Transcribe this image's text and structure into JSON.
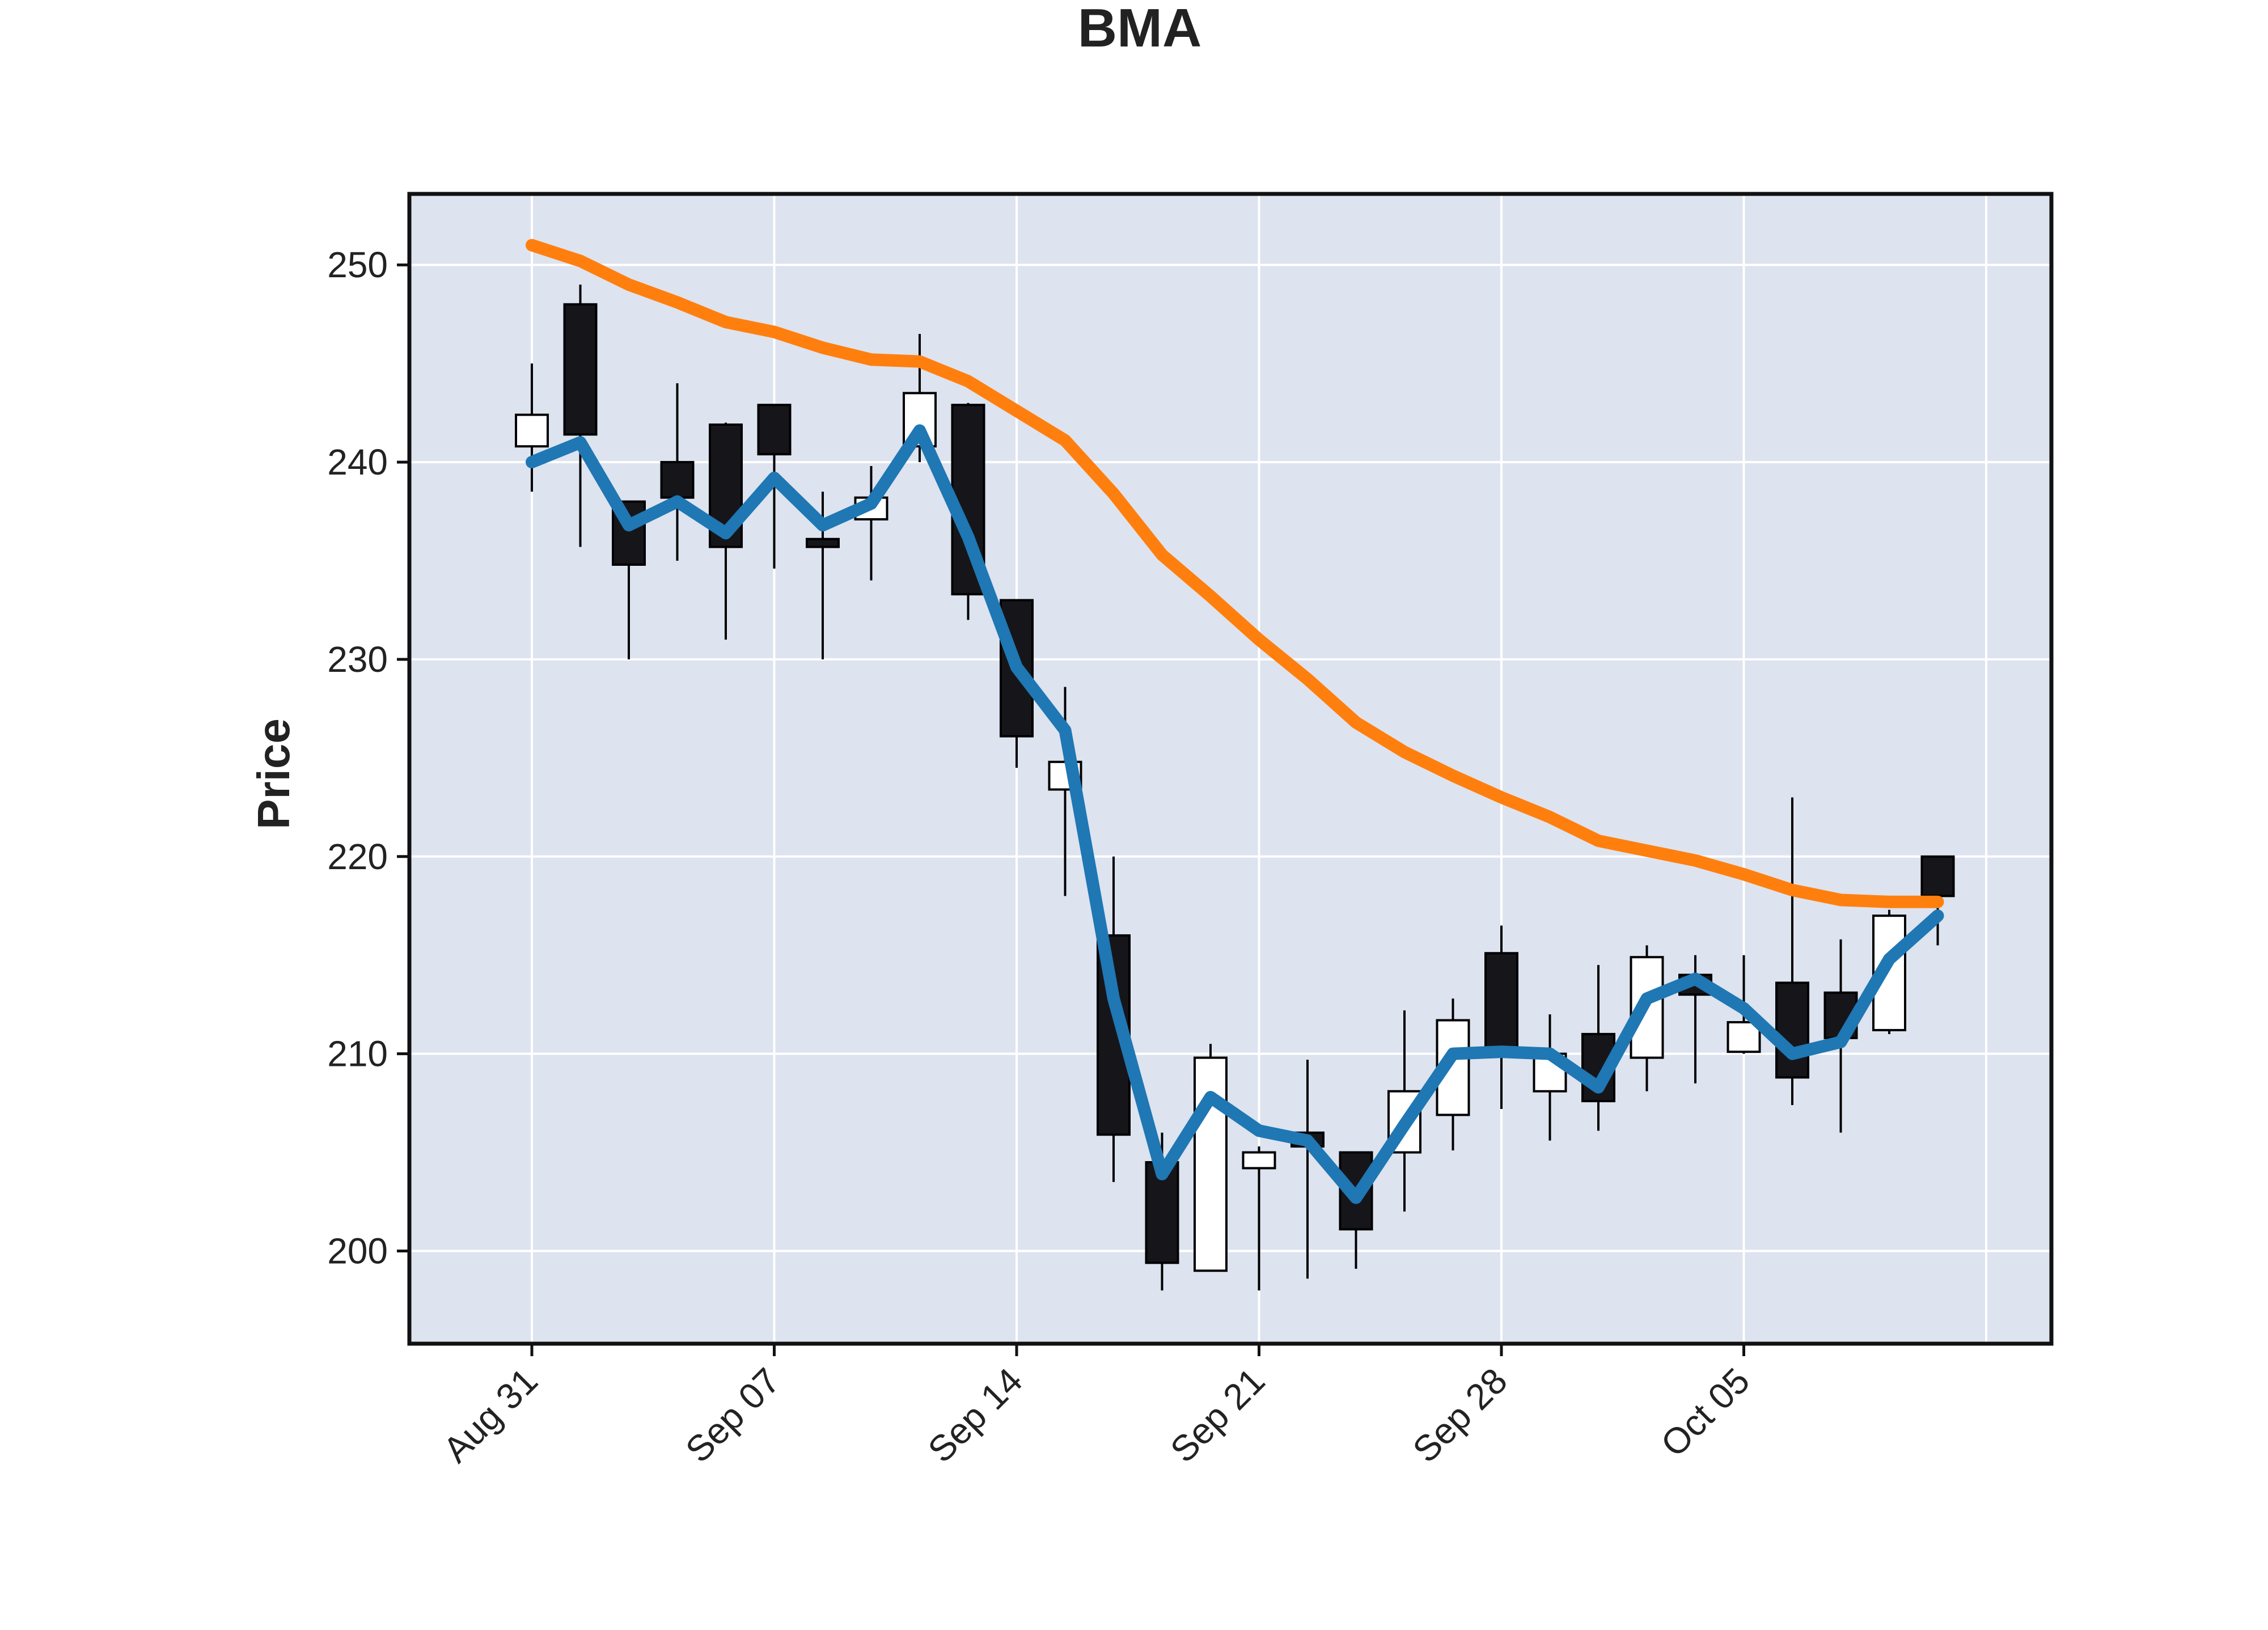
{
  "chart_data": {
    "type": "candlestick",
    "title": "BMA",
    "xlabel": "",
    "ylabel": "Price",
    "ylim": [
      195.3,
      253.6
    ],
    "yticks": [
      200,
      210,
      220,
      230,
      240,
      250
    ],
    "xticks": [
      {
        "date": "2020-08-31",
        "label": "Aug 31"
      },
      {
        "date": "2020-09-07",
        "label": "Sep 07"
      },
      {
        "date": "2020-09-14",
        "label": "Sep 14"
      },
      {
        "date": "2020-09-21",
        "label": "Sep 21"
      },
      {
        "date": "2020-09-28",
        "label": "Sep 28"
      },
      {
        "date": "2020-10-05",
        "label": "Oct 05"
      }
    ],
    "grid": true,
    "colors": {
      "plot_background": "#dde3ef",
      "grid": "#ffffff",
      "up_candle": "#ffffff",
      "down_candle": "#16161a",
      "wick": "#000000",
      "close_line": "#1f77b4",
      "ma_line": "#ff7f0e"
    },
    "candles": [
      {
        "date": "2020-08-31",
        "open": 240.8,
        "high": 245.0,
        "low": 238.5,
        "close": 242.4
      },
      {
        "date": "2020-09-01",
        "open": 248.0,
        "high": 249.0,
        "low": 235.7,
        "close": 241.4
      },
      {
        "date": "2020-09-02",
        "open": 238.0,
        "high": 238.0,
        "low": 230.0,
        "close": 234.8
      },
      {
        "date": "2020-09-03",
        "open": 240.0,
        "high": 244.0,
        "low": 235.0,
        "close": 238.2
      },
      {
        "date": "2020-09-04",
        "open": 241.9,
        "high": 242.0,
        "low": 231.0,
        "close": 235.7
      },
      {
        "date": "2020-09-07",
        "open": 242.9,
        "high": 242.9,
        "low": 234.6,
        "close": 240.4
      },
      {
        "date": "2020-09-08",
        "open": 236.1,
        "high": 238.5,
        "low": 230.0,
        "close": 235.7
      },
      {
        "date": "2020-09-09",
        "open": 237.1,
        "high": 239.8,
        "low": 234.0,
        "close": 238.2
      },
      {
        "date": "2020-09-10",
        "open": 240.8,
        "high": 246.5,
        "low": 240.0,
        "close": 243.5
      },
      {
        "date": "2020-09-11",
        "open": 242.9,
        "high": 243.0,
        "low": 232.0,
        "close": 233.3
      },
      {
        "date": "2020-09-14",
        "open": 233.0,
        "high": 233.0,
        "low": 224.5,
        "close": 226.1
      },
      {
        "date": "2020-09-15",
        "open": 223.4,
        "high": 228.6,
        "low": 218.0,
        "close": 224.8
      },
      {
        "date": "2020-09-16",
        "open": 216.0,
        "high": 220.0,
        "low": 203.5,
        "close": 205.9
      },
      {
        "date": "2020-09-17",
        "open": 204.5,
        "high": 206.0,
        "low": 198.0,
        "close": 199.4
      },
      {
        "date": "2020-09-18",
        "open": 199.0,
        "high": 210.5,
        "low": 199.0,
        "close": 209.8
      },
      {
        "date": "2020-09-21",
        "open": 204.2,
        "high": 205.3,
        "low": 198.0,
        "close": 205.0
      },
      {
        "date": "2020-09-22",
        "open": 206.0,
        "high": 209.7,
        "low": 198.6,
        "close": 205.3
      },
      {
        "date": "2020-09-23",
        "open": 205.0,
        "high": 205.0,
        "low": 199.1,
        "close": 201.1
      },
      {
        "date": "2020-09-24",
        "open": 205.0,
        "high": 212.2,
        "low": 202.0,
        "close": 208.1
      },
      {
        "date": "2020-09-25",
        "open": 206.9,
        "high": 212.8,
        "low": 205.1,
        "close": 211.7
      },
      {
        "date": "2020-09-28",
        "open": 215.1,
        "high": 216.5,
        "low": 207.2,
        "close": 210.1
      },
      {
        "date": "2020-09-29",
        "open": 208.1,
        "high": 212.0,
        "low": 205.6,
        "close": 210.0
      },
      {
        "date": "2020-09-30",
        "open": 211.0,
        "high": 214.5,
        "low": 206.1,
        "close": 207.6
      },
      {
        "date": "2020-10-01",
        "open": 209.8,
        "high": 215.5,
        "low": 208.1,
        "close": 214.9
      },
      {
        "date": "2020-10-02",
        "open": 214.0,
        "high": 215.0,
        "low": 208.5,
        "close": 213.0
      },
      {
        "date": "2020-10-05",
        "open": 210.1,
        "high": 215.0,
        "low": 210.0,
        "close": 211.6
      },
      {
        "date": "2020-10-06",
        "open": 213.6,
        "high": 223.0,
        "low": 207.4,
        "close": 208.8
      },
      {
        "date": "2020-10-07",
        "open": 213.1,
        "high": 215.8,
        "low": 206.0,
        "close": 210.8
      },
      {
        "date": "2020-10-08",
        "open": 211.2,
        "high": 217.3,
        "low": 211.0,
        "close": 217.0
      },
      {
        "date": "2020-10-09",
        "open": 220.0,
        "high": 220.0,
        "low": 215.5,
        "close": 218.0
      }
    ],
    "series": [
      {
        "values": [
          240.0,
          241.0,
          236.8,
          238.0,
          236.4,
          239.2,
          236.8,
          237.9,
          241.6,
          236.2,
          229.6,
          226.4,
          212.8,
          203.9,
          207.8,
          206.1,
          205.6,
          202.7,
          206.4,
          210.0,
          210.1,
          210.0,
          208.3,
          212.8,
          213.8,
          212.3,
          210.0,
          210.6,
          214.8,
          217.0
        ]
      },
      {
        "values": [
          251.0,
          250.2,
          249.0,
          248.1,
          247.1,
          246.6,
          245.8,
          245.2,
          245.1,
          244.1,
          242.6,
          241.1,
          238.4,
          235.3,
          233.2,
          231.0,
          229.0,
          226.8,
          225.3,
          224.1,
          223.0,
          222.0,
          220.8,
          220.3,
          219.8,
          219.1,
          218.3,
          217.8,
          217.7,
          217.7
        ]
      }
    ]
  }
}
